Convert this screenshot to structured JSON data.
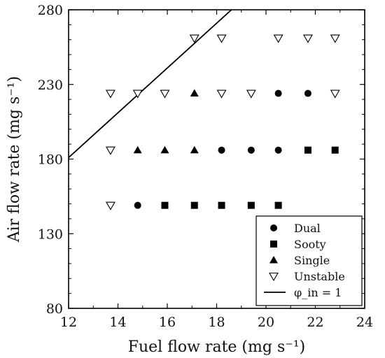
{
  "chart_data": {
    "type": "scatter",
    "xlabel": "Fuel flow rate (mg s⁻¹)",
    "ylabel": "Air flow rate (mg s⁻¹)",
    "xlim": [
      12,
      24
    ],
    "ylim": [
      80,
      280
    ],
    "xticks": [
      "12",
      "14",
      "16",
      "18",
      "20",
      "22",
      "24"
    ],
    "yticks": [
      "80",
      "130",
      "180",
      "230",
      "280"
    ],
    "legend_position": "bottom-right",
    "series": [
      {
        "name": "Dual",
        "marker": "filled-circle",
        "points": [
          [
            14.8,
            149
          ],
          [
            18.2,
            186
          ],
          [
            19.4,
            186
          ],
          [
            20.5,
            186
          ],
          [
            20.5,
            224
          ],
          [
            21.7,
            224
          ]
        ]
      },
      {
        "name": "Sooty",
        "marker": "filled-square",
        "points": [
          [
            15.9,
            149
          ],
          [
            17.1,
            149
          ],
          [
            18.2,
            149
          ],
          [
            19.4,
            149
          ],
          [
            20.5,
            149
          ],
          [
            21.7,
            186
          ],
          [
            22.8,
            186
          ]
        ]
      },
      {
        "name": "Single",
        "marker": "filled-triangle-up",
        "points": [
          [
            14.8,
            186
          ],
          [
            15.9,
            186
          ],
          [
            17.1,
            186
          ],
          [
            17.1,
            224
          ]
        ]
      },
      {
        "name": "Unstable",
        "marker": "open-triangle-down",
        "points": [
          [
            13.7,
            149
          ],
          [
            13.7,
            186
          ],
          [
            13.7,
            224
          ],
          [
            14.8,
            224
          ],
          [
            15.9,
            224
          ],
          [
            18.2,
            224
          ],
          [
            19.4,
            224
          ],
          [
            22.8,
            224
          ],
          [
            17.1,
            261
          ],
          [
            18.2,
            261
          ],
          [
            20.5,
            261
          ],
          [
            21.7,
            261
          ],
          [
            22.8,
            261
          ]
        ]
      },
      {
        "name": "φ_in = 1",
        "marker": "line",
        "points": [
          [
            12,
            181
          ],
          [
            18.6,
            280
          ]
        ]
      }
    ]
  }
}
